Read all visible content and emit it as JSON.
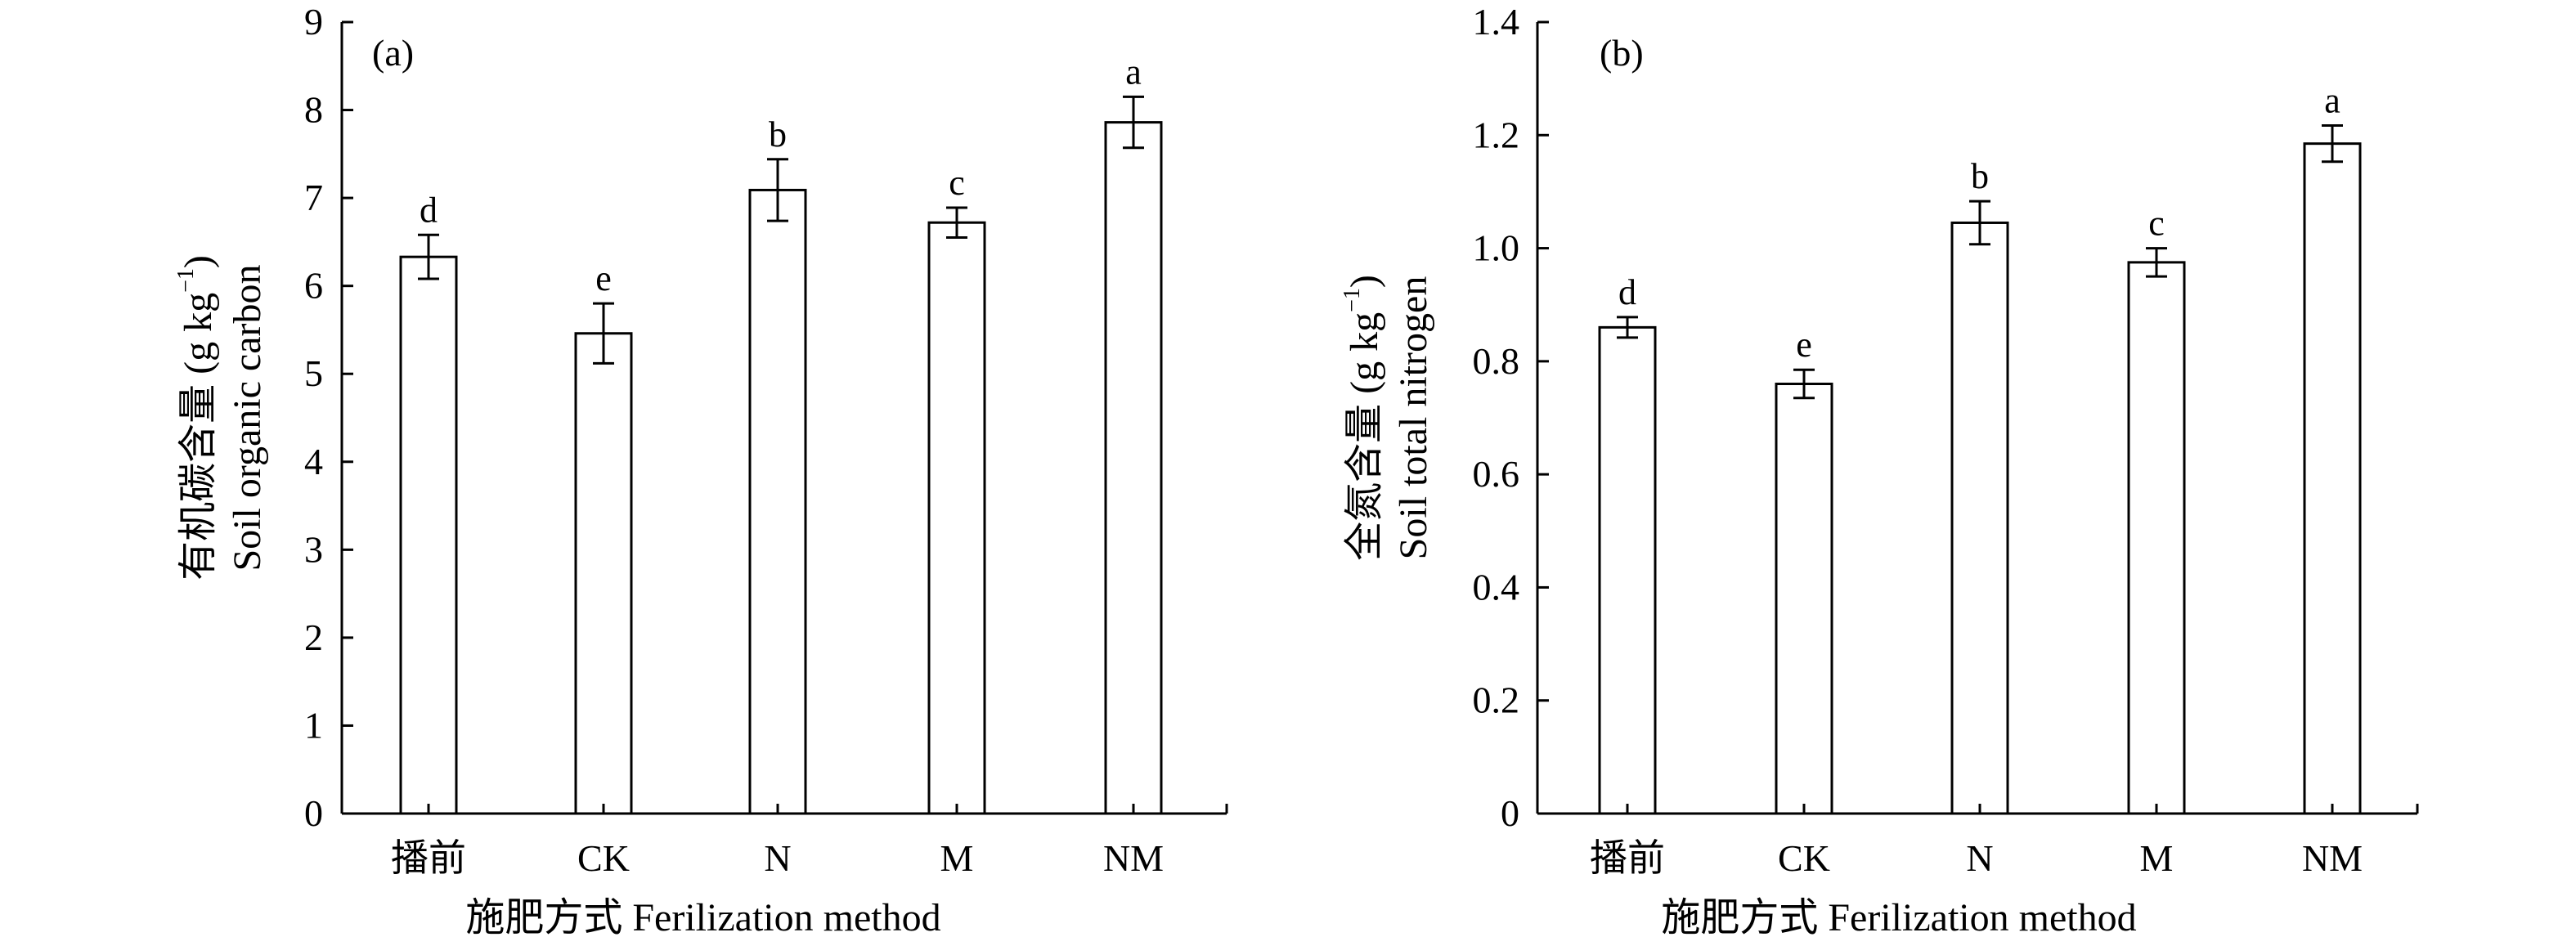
{
  "chart_data": [
    {
      "type": "bar",
      "panel_label": "(a)",
      "categories": [
        "播前",
        "CK",
        "N",
        "M",
        "NM"
      ],
      "values": [
        6.33,
        5.46,
        7.09,
        6.72,
        7.86
      ],
      "errors": [
        0.25,
        0.34,
        0.35,
        0.17,
        0.29
      ],
      "letters": [
        "d",
        "e",
        "b",
        "c",
        "a"
      ],
      "ylim": [
        0,
        9
      ],
      "yticks": [
        0,
        1,
        2,
        3,
        4,
        5,
        6,
        7,
        8,
        9
      ],
      "ytick_labels": [
        "0",
        "1",
        "2",
        "3",
        "4",
        "5",
        "6",
        "7",
        "8",
        "9"
      ],
      "ylabel_line1": "有机碳含量 (g kg",
      "ylabel_sup": "−1",
      "ylabel_close": ")",
      "ylabel_line2": "Soil organic carbon",
      "xlabel": "施肥方式 Ferilization method",
      "grid": false
    },
    {
      "type": "bar",
      "panel_label": "(b)",
      "categories": [
        "播前",
        "CK",
        "N",
        "M",
        "NM"
      ],
      "values": [
        0.86,
        0.76,
        1.045,
        0.975,
        1.185
      ],
      "errors": [
        0.018,
        0.025,
        0.038,
        0.025,
        0.032
      ],
      "letters": [
        "d",
        "e",
        "b",
        "c",
        "a"
      ],
      "ylim": [
        0,
        1.4
      ],
      "yticks": [
        0,
        0.2,
        0.4,
        0.6,
        0.8,
        1.0,
        1.2,
        1.4
      ],
      "ytick_labels": [
        "0",
        "0.2",
        "0.4",
        "0.6",
        "0.8",
        "1.0",
        "1.2",
        "1.4"
      ],
      "ylabel_line1": "全氮含量 (g kg",
      "ylabel_sup": "−1",
      "ylabel_close": ")",
      "ylabel_line2": "Soil total nitrogen",
      "xlabel": "施肥方式 Ferilization method",
      "grid": false
    }
  ]
}
